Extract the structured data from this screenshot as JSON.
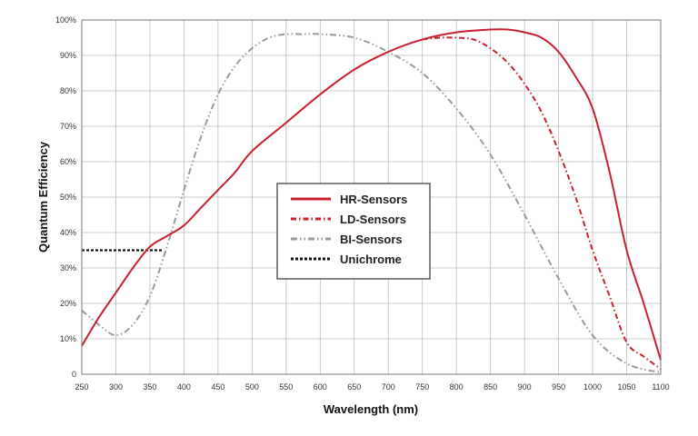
{
  "chart_data": {
    "type": "line",
    "xlabel": "Wavelength (nm)",
    "ylabel": "Quantum Efficiency",
    "xlim": [
      250,
      1100
    ],
    "ylim": [
      0,
      100
    ],
    "x_ticks": [
      250,
      300,
      350,
      400,
      450,
      500,
      550,
      600,
      650,
      700,
      750,
      800,
      850,
      900,
      950,
      1000,
      1050,
      1100
    ],
    "y_ticks": [
      0,
      10,
      20,
      30,
      40,
      50,
      60,
      70,
      80,
      90,
      100
    ],
    "y_tick_labels": [
      "0",
      "10%",
      "20%",
      "30%",
      "40%",
      "50%",
      "60%",
      "70%",
      "80%",
      "90%",
      "100%"
    ],
    "grid": true,
    "legend_position": "center",
    "series": [
      {
        "name": "HR-Sensors",
        "color": "#c8202e",
        "style": "solid",
        "x": [
          250,
          275,
          300,
          325,
          350,
          375,
          400,
          425,
          450,
          475,
          500,
          550,
          600,
          650,
          700,
          750,
          800,
          850,
          875,
          900,
          925,
          950,
          975,
          1000,
          1025,
          1050,
          1075,
          1100
        ],
        "y": [
          8,
          16,
          23,
          30,
          36,
          39,
          42,
          47,
          52,
          57,
          63,
          71,
          79,
          86,
          91,
          94.5,
          96.5,
          97.3,
          97.3,
          96.5,
          95,
          91,
          84,
          75,
          57,
          35,
          20,
          4
        ]
      },
      {
        "name": "LD-Sensors",
        "color": "#c8202e",
        "style": "dash-dot",
        "x": [
          750,
          775,
          800,
          825,
          850,
          875,
          900,
          925,
          950,
          975,
          1000,
          1025,
          1050,
          1075,
          1100
        ],
        "y": [
          94.5,
          95,
          95,
          94.5,
          92,
          88,
          82,
          74,
          63,
          50,
          35,
          22,
          9,
          5,
          1.5
        ]
      },
      {
        "name": "BI-Sensors",
        "color": "#999999",
        "style": "dash-dot-dot",
        "x": [
          250,
          275,
          300,
          325,
          350,
          375,
          400,
          425,
          450,
          475,
          500,
          525,
          550,
          575,
          600,
          650,
          700,
          750,
          800,
          850,
          900,
          950,
          1000,
          1050,
          1100
        ],
        "y": [
          18,
          14,
          11,
          14,
          22,
          36,
          52,
          67,
          79,
          87,
          92,
          95,
          96,
          96,
          96,
          95,
          91,
          85,
          75,
          62,
          45,
          27,
          11,
          3,
          0.5
        ]
      },
      {
        "name": "Unichrome",
        "color": "#111111",
        "style": "dotted",
        "x": [
          250,
          370
        ],
        "y": [
          35,
          35
        ]
      }
    ]
  }
}
